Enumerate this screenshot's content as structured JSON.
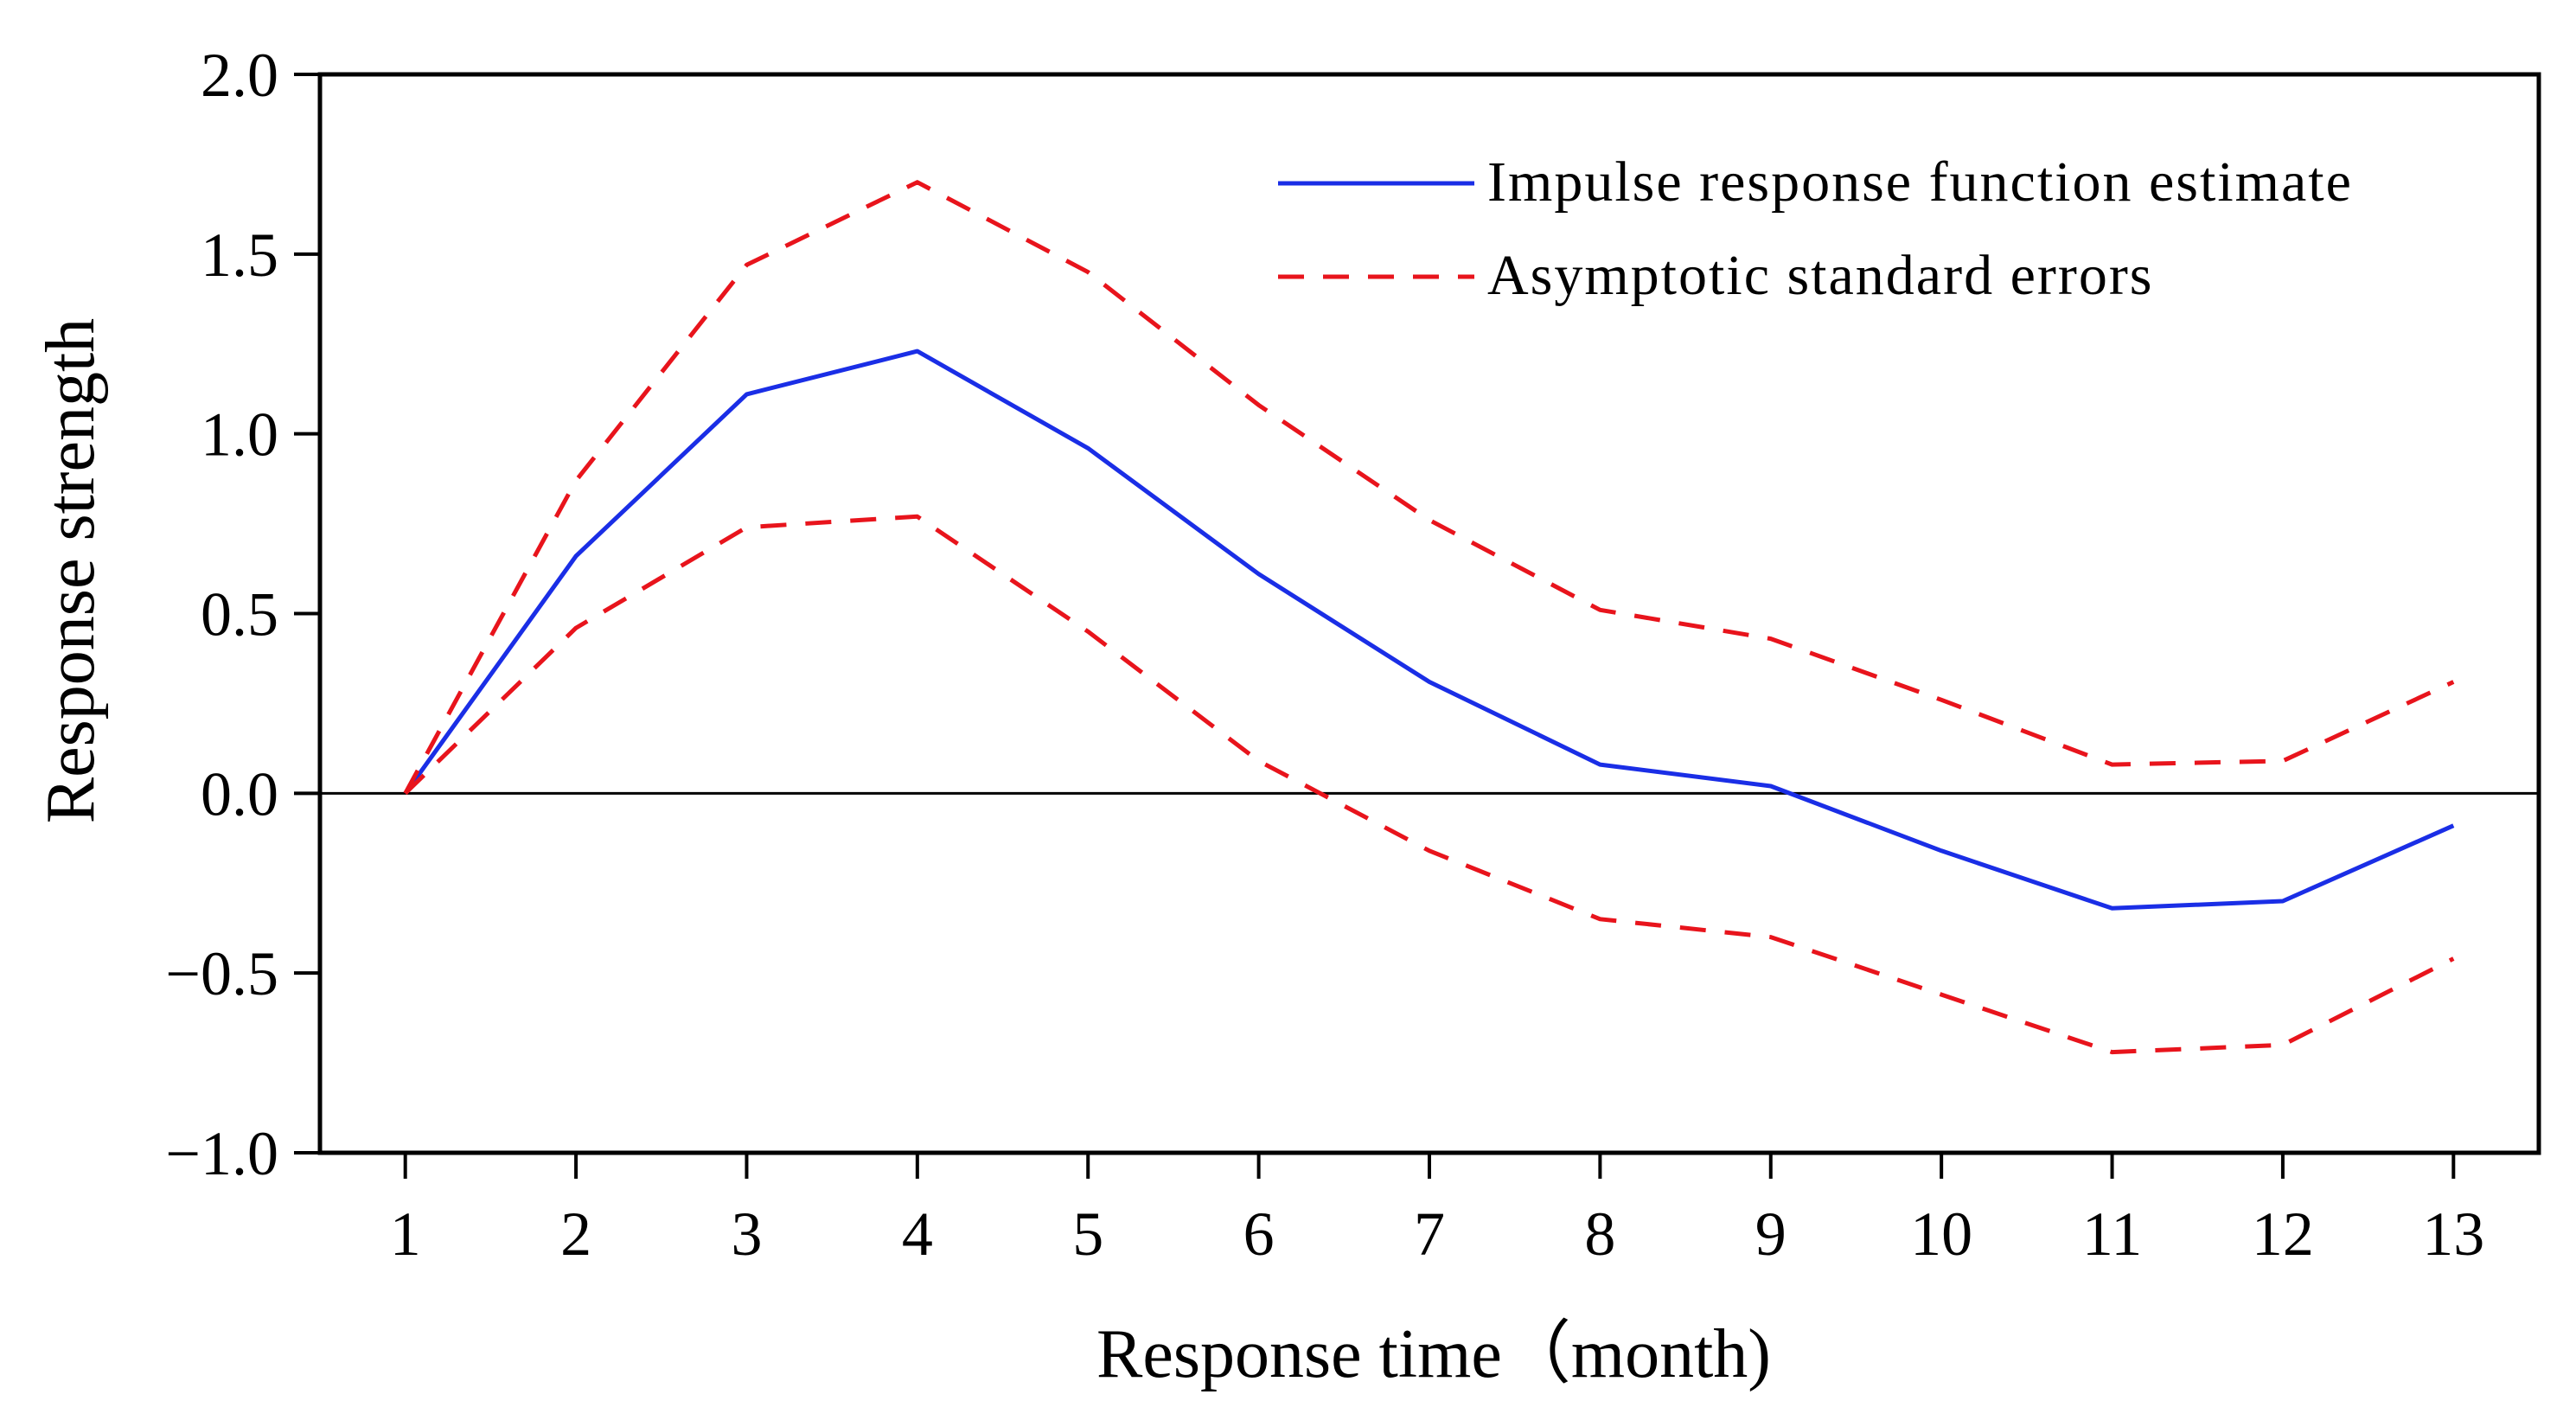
{
  "chart_data": {
    "type": "line",
    "xlabel": "Response time（month)",
    "ylabel": "Response strength",
    "xlim": [
      0.5,
      13.5
    ],
    "ylim": [
      -1.0,
      2.0
    ],
    "grid": false,
    "legend_position": "top-right",
    "x": [
      1,
      2,
      3,
      4,
      5,
      6,
      7,
      8,
      9,
      10,
      11,
      12,
      13
    ],
    "x_tick_labels": [
      "1",
      "2",
      "3",
      "4",
      "5",
      "6",
      "7",
      "8",
      "9",
      "10",
      "11",
      "12",
      "13"
    ],
    "y_ticks": [
      2.0,
      1.5,
      1.0,
      0.5,
      0.0,
      -0.5,
      -1.0
    ],
    "y_tick_labels": [
      "2.0",
      "1.5",
      "1.0",
      "0.5",
      "0.0",
      "−0.5",
      "−1.0"
    ],
    "zero_line": 0,
    "series": [
      {
        "name": "Impulse response function estimate",
        "color": "#1a2ee6",
        "style": "solid",
        "values": [
          0.0,
          0.66,
          1.11,
          1.23,
          0.96,
          0.61,
          0.31,
          0.08,
          0.02,
          -0.16,
          -0.32,
          -0.3,
          -0.09
        ]
      },
      {
        "name": "Asymptotic standard errors",
        "color": "#e8141c",
        "style": "dashed",
        "values": [
          0.0,
          0.87,
          1.47,
          1.7,
          1.45,
          1.08,
          0.76,
          0.51,
          0.43,
          0.26,
          0.08,
          0.09,
          0.31
        ]
      },
      {
        "name": "Asymptotic standard errors (lower)",
        "color": "#e8141c",
        "style": "dashed",
        "in_legend": false,
        "values": [
          0.0,
          0.46,
          0.74,
          0.77,
          0.45,
          0.09,
          -0.16,
          -0.35,
          -0.4,
          -0.56,
          -0.72,
          -0.7,
          -0.46
        ]
      }
    ]
  }
}
